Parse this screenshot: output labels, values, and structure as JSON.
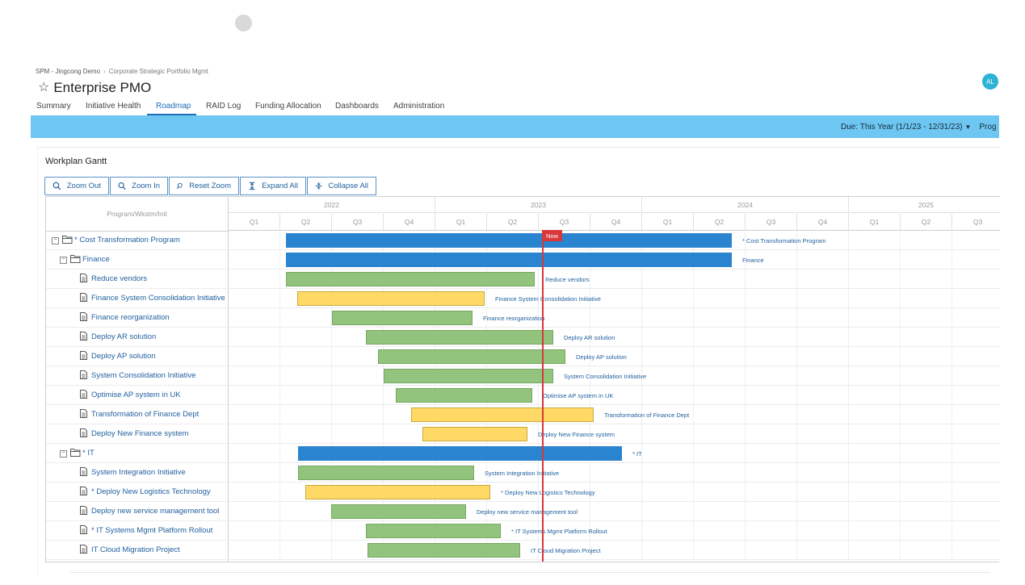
{
  "breadcrumb": {
    "item1": "SPM - Jingcong Demo",
    "separator": "›",
    "item2": "Corporate Strategic Portfolio Mgmt"
  },
  "page": {
    "title": "Enterprise PMO",
    "star_icon": "☆"
  },
  "avatar": {
    "initials": "AL",
    "color": "#2eb3d6"
  },
  "tabs": [
    "Summary",
    "Initiative Health",
    "Roadmap",
    "RAID Log",
    "Funding Allocation",
    "Dashboards",
    "Administration"
  ],
  "active_tab": "Roadmap",
  "filter": {
    "due_label": "Due: This Year (1/1/23 - 12/31/23)",
    "caret": "▼",
    "next_label": "Prog"
  },
  "panel": {
    "title": "Workplan Gantt"
  },
  "toolbar": {
    "zoom_out": "Zoom Out",
    "zoom_in": "Zoom In",
    "reset_zoom": "Reset Zoom",
    "expand_all": "Expand All",
    "collapse_all": "Collapse All"
  },
  "gantt": {
    "tree_header": "Program/Wkstm/Init",
    "years": [
      "2022",
      "2023",
      "2024",
      "2025"
    ],
    "quarters": [
      "Q1",
      "Q2",
      "Q3",
      "Q4",
      "Q1",
      "Q2",
      "Q3",
      "Q4",
      "Q1",
      "Q2",
      "Q3",
      "Q4",
      "Q1",
      "Q2",
      "Q3"
    ],
    "now_label": "Now",
    "colors": {
      "program": "#2b84cf",
      "green": "#93c47d",
      "yellow": "#ffd966",
      "now": "#d9383a"
    },
    "rows": [
      {
        "label": "* Cost Transformation Program",
        "type": "program",
        "bar_label": "* Cost Transformation Program"
      },
      {
        "label": "Finance",
        "type": "workstream",
        "bar_label": "Finance"
      },
      {
        "label": "Reduce vendors",
        "type": "initiative",
        "bar_label": "Reduce vendors"
      },
      {
        "label": "Finance System Consolidation Initiative",
        "type": "initiative",
        "bar_label": "Finance System Consolidation Initiative"
      },
      {
        "label": "Finance reorganization",
        "type": "initiative",
        "bar_label": "Finance reorganization"
      },
      {
        "label": "Deploy AR solution",
        "type": "initiative",
        "bar_label": "Deploy AR solution"
      },
      {
        "label": "Deploy AP solution",
        "type": "initiative",
        "bar_label": "Deploy AP solution"
      },
      {
        "label": "System Consolidation Initiative",
        "type": "initiative",
        "bar_label": "System Consolidation Initiative"
      },
      {
        "label": "Optimise AP system in UK",
        "type": "initiative",
        "bar_label": "Optimise AP system in UK"
      },
      {
        "label": "Transformation of Finance Dept",
        "type": "initiative",
        "bar_label": "Transformation of Finance Dept"
      },
      {
        "label": "Deploy New Finance system",
        "type": "initiative",
        "bar_label": "Deploy New Finance system"
      },
      {
        "label": "* IT",
        "type": "workstream",
        "bar_label": "* IT"
      },
      {
        "label": "System Integration Initiative",
        "type": "initiative",
        "bar_label": "System Integration Initiative"
      },
      {
        "label": "* Deploy New Logistics Technology",
        "type": "initiative",
        "bar_label": "* Deploy New Logistics Technology"
      },
      {
        "label": "Deploy new service management tool",
        "type": "initiative",
        "bar_label": "Deploy new service management tool"
      },
      {
        "label": "* IT Systems Mgmt Platform Rollout",
        "type": "initiative",
        "bar_label": "* IT Systems Mgmt Platform Rollout"
      },
      {
        "label": "IT Cloud Migration Project",
        "type": "initiative",
        "bar_label": "IT Cloud Migration Project"
      }
    ]
  }
}
